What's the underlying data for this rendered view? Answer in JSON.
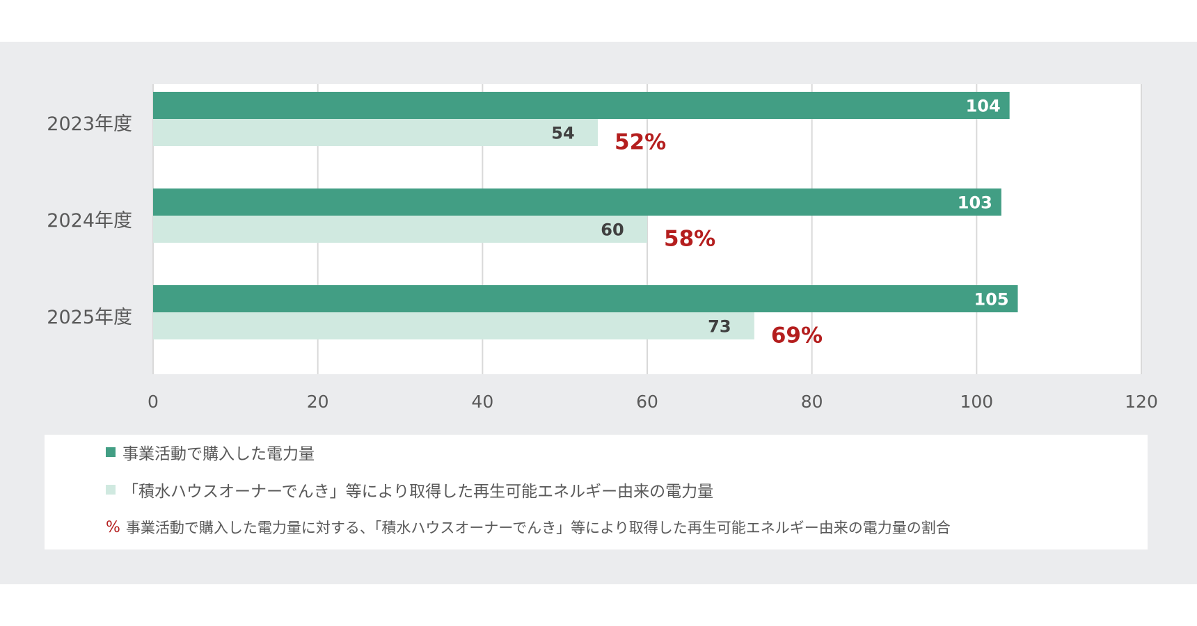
{
  "colors": {
    "purchased": "#429e84",
    "renewable": "#d0e9e0",
    "ratio": "#b41e1e",
    "grid": "#d9d9d9",
    "axis_text": "#595959"
  },
  "chart_data": {
    "type": "bar",
    "orientation": "horizontal",
    "categories": [
      "2023年度",
      "2024年度",
      "2025年度"
    ],
    "series": [
      {
        "name": "事業活動で購入した電力量",
        "values": [
          104,
          103,
          105
        ],
        "color": "#429e84"
      },
      {
        "name": "「積水ハウスオーナーでんき」等により取得した再生可能エネルギー由来の電力量",
        "values": [
          54,
          60,
          73
        ],
        "color": "#d0e9e0"
      }
    ],
    "ratio_labels": [
      "52%",
      "58%",
      "69%"
    ],
    "ratio_legend": {
      "mark": "%",
      "text": "事業活動で購入した電力量に対する、「積水ハウスオーナーでんき」等により取得した再生可能エネルギー由来の電力量の割合"
    },
    "x_ticks": [
      0,
      20,
      40,
      60,
      80,
      100,
      120
    ],
    "xlim": [
      0,
      120
    ],
    "grid": true,
    "legend_position": "bottom",
    "title": "",
    "xlabel": "",
    "ylabel": ""
  }
}
